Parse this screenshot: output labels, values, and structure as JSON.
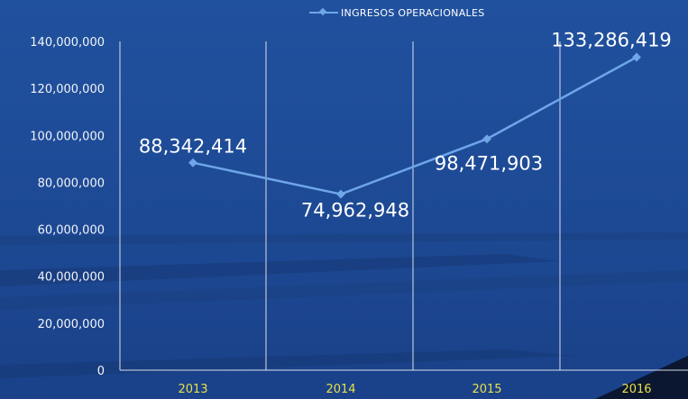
{
  "chart_data": {
    "type": "line",
    "categories": [
      "2013",
      "2014",
      "2015",
      "2016"
    ],
    "series": [
      {
        "name": "INGRESOS OPERACIONALES",
        "values": [
          88342414,
          74962948,
          98471903,
          133286419
        ],
        "labels": [
          "88,342,414",
          "74,962,948",
          "98,471,903",
          "133,286,419"
        ],
        "color": "#6ea6e8"
      }
    ],
    "ylim": [
      0,
      140000000
    ],
    "yticks": [
      0,
      20000000,
      40000000,
      60000000,
      80000000,
      100000000,
      120000000,
      140000000
    ],
    "ytick_labels": [
      "0",
      "20,000,000",
      "40,000,000",
      "60,000,000",
      "80,000,000",
      "100,000,000",
      "120,000,000",
      "140,000,000"
    ],
    "legend_position": "top-center",
    "vertical_gridlines": true,
    "colors": {
      "background": "#1f4a94",
      "gridline": "#d9dee8",
      "tick_text": "#f2f4f8",
      "category_text": "#e6e04a",
      "data_label": "#ffffff"
    }
  }
}
